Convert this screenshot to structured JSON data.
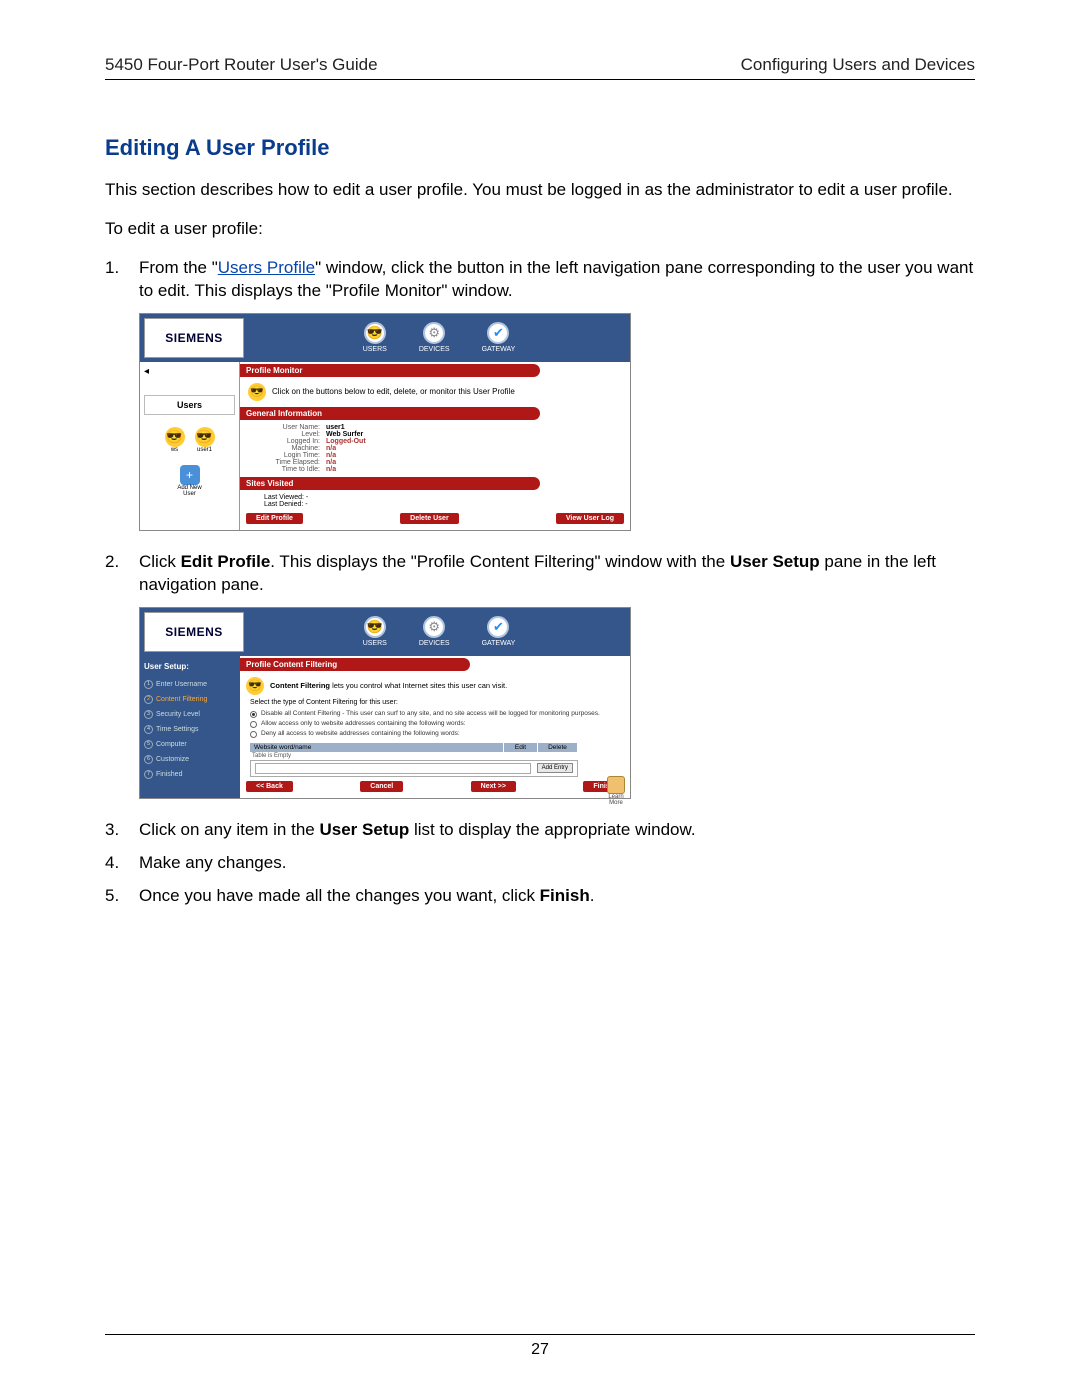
{
  "header": {
    "left": "5450 Four-Port Router User's Guide",
    "right": "Configuring Users and Devices"
  },
  "heading": "Editing A User Profile",
  "intro": "This section describes how to edit a user profile. You must be logged in as the administrator to edit a user profile.",
  "lead": "To edit a user profile:",
  "steps": {
    "s1_pre": "From the \"",
    "s1_link": "Users Profile",
    "s1_post": "\" window, click the button in the left navigation pane corresponding to the user you want to edit. This displays the \"Profile Monitor\" window.",
    "s2_a": "Click ",
    "s2_b": "Edit Profile",
    "s2_c": ". This displays the \"Profile Content Filtering\" window with the ",
    "s2_d": "User Setup",
    "s2_e": " pane in the left navigation pane.",
    "s3_a": "Click on any item in the ",
    "s3_b": "User Setup",
    "s3_c": " list to display the appropriate window.",
    "s4": "Make any changes.",
    "s5_a": "Once you have made all the changes you want, click ",
    "s5_b": "Finish",
    "s5_c": "."
  },
  "shot1": {
    "logo": "SIEMENS",
    "nav": {
      "users": "USERS",
      "devices": "DEVICES",
      "gateway": "GATEWAY"
    },
    "side": {
      "title": "Users",
      "u1": "ws",
      "u2": "user1",
      "add1": "Add New",
      "add2": "User"
    },
    "bars": {
      "monitor": "Profile Monitor",
      "info": "General Information",
      "sites": "Sites Visited"
    },
    "desc": "Click on the buttons below to edit, delete, or monitor this User Profile",
    "info": {
      "l1": "User Name:",
      "v1": "user1",
      "l2": "Level:",
      "v2": "Web Surfer",
      "l3": "Logged In:",
      "v3": "Logged-Out",
      "l4": "Machine:",
      "v4": "n/a",
      "l5": "Login Time:",
      "v5": "n/a",
      "l6": "Time Elapsed:",
      "v6": "n/a",
      "l7": "Time to Idle:",
      "v7": "n/a"
    },
    "sites": {
      "l1": "Last Viewed: -",
      "l2": "Last Denied: -"
    },
    "btns": {
      "edit": "Edit Profile",
      "del": "Delete User",
      "log": "View User Log"
    }
  },
  "shot2": {
    "logo": "SIEMENS",
    "nav": {
      "users": "USERS",
      "devices": "DEVICES",
      "gateway": "GATEWAY"
    },
    "side_title": "User Setup:",
    "side_items": {
      "i1": "Enter Username",
      "i2": "Content Filtering",
      "i3": "Security Level",
      "i4": "Time Settings",
      "i5": "Computer",
      "i6": "Customize",
      "i7": "Finished"
    },
    "bar": "Profile Content Filtering",
    "cf_desc": "Content Filtering lets you control what Internet sites this user can visit.",
    "cf_select": "Select the type of Content Filtering for this user:",
    "r1": "Disable all Content Filtering - This user can surf to any site, and no site access will be logged for monitoring purposes.",
    "r2": "Allow access only to website addresses containing the following words:",
    "r3": "Deny all access to website addresses containing the following words:",
    "tbl": {
      "h1": "Website word/name",
      "h2": "Edit",
      "h3": "Delete",
      "empty": "Table is Empty",
      "add": "Add Entry"
    },
    "learn": {
      "a": "Learn",
      "b": "More"
    },
    "btns": {
      "back": "<< Back",
      "cancel": "Cancel",
      "next": "Next >>",
      "finish": "Finish"
    }
  },
  "page_number": "27"
}
